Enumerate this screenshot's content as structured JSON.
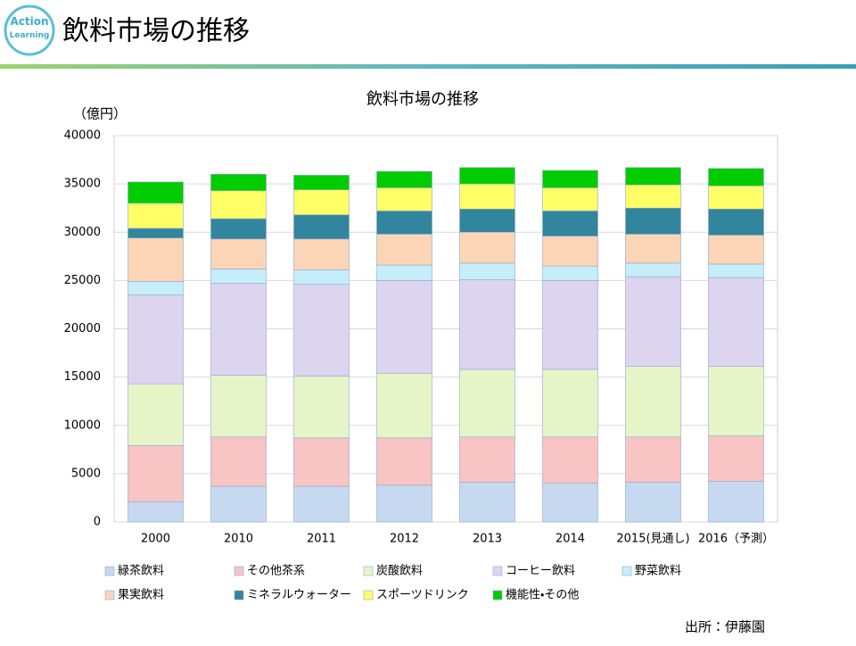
{
  "header": {
    "logo_lines": [
      "Action",
      "Learning"
    ],
    "title": "飲料市場の推移"
  },
  "chart_data": {
    "type": "stacked-bar",
    "title": "飲料市場の推移",
    "y_label": "（億円）",
    "categories": [
      "2000",
      "2010",
      "2011",
      "2012",
      "2013",
      "2014",
      "2015(見通し)",
      "2016（予測）"
    ],
    "series": [
      {
        "name": "緑茶飲料",
        "color": "#c6d9f1",
        "values": [
          2100,
          3700,
          3700,
          3800,
          4100,
          4000,
          4100,
          4200
        ]
      },
      {
        "name": "その他茶系",
        "color": "#f9c4c4",
        "values": [
          5800,
          5100,
          5000,
          4900,
          4700,
          4800,
          4700,
          4700
        ]
      },
      {
        "name": "炭酸飲料",
        "color": "#e6f5c8",
        "values": [
          6400,
          6400,
          6400,
          6700,
          7000,
          7000,
          7300,
          7200
        ]
      },
      {
        "name": "コーヒー飲料",
        "color": "#ddd4f0",
        "values": [
          9200,
          9500,
          9500,
          9600,
          9300,
          9200,
          9300,
          9200
        ]
      },
      {
        "name": "野菜飲料",
        "color": "#c6eefa",
        "values": [
          1400,
          1500,
          1500,
          1600,
          1700,
          1500,
          1400,
          1400
        ]
      },
      {
        "name": "果実飲料",
        "color": "#fbd5b5",
        "values": [
          4500,
          3100,
          3200,
          3200,
          3200,
          3100,
          3000,
          3000
        ]
      },
      {
        "name": "ミネラルウォーター",
        "color": "#31859c",
        "values": [
          1000,
          2100,
          2500,
          2400,
          2400,
          2600,
          2700,
          2700
        ]
      },
      {
        "name": "スポーツドリンク",
        "color": "#ffff66",
        "values": [
          2600,
          2900,
          2600,
          2400,
          2600,
          2400,
          2400,
          2400
        ]
      },
      {
        "name": "機能性・その他",
        "color": "#00cc00",
        "values": [
          2200,
          1700,
          1500,
          1700,
          1700,
          1800,
          1800,
          1800
        ]
      }
    ],
    "ylim": [
      0,
      40000
    ],
    "yticks": [
      0,
      5000,
      10000,
      15000,
      20000,
      25000,
      30000,
      35000,
      40000
    ],
    "grid": true
  },
  "source": "出所：伊藤園"
}
